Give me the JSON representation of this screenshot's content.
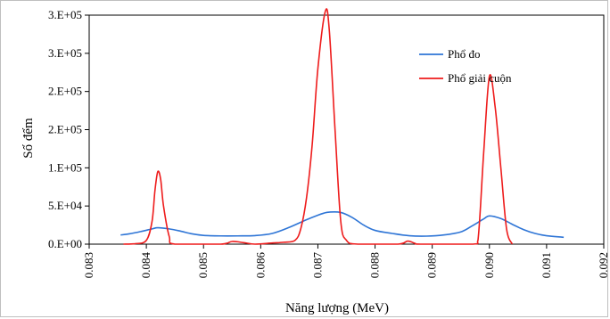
{
  "chart_data": {
    "type": "line",
    "title": "",
    "xlabel": "Năng lượng (MeV)",
    "ylabel": "Số đếm",
    "xlim": [
      0.083,
      0.092
    ],
    "ylim": [
      0,
      300000
    ],
    "x_ticks": [
      "0.083",
      "0.084",
      "0.085",
      "0.086",
      "0.087",
      "0.088",
      "0.089",
      "0.090",
      "0.091",
      "0.092"
    ],
    "y_ticks": [
      "0.E+00",
      "5.E+04",
      "1.E+05",
      "2.E+05",
      "2.E+05",
      "3.E+05",
      "3.E+05"
    ],
    "grid": false,
    "legend_position": "top-right",
    "colors": {
      "measured": "#2e75d6",
      "unfolded": "#ee1c1c"
    },
    "series": [
      {
        "name": "Phổ đo",
        "color": "#2e75d6",
        "points": [
          [
            0.08355,
            12000
          ],
          [
            0.0837,
            13500
          ],
          [
            0.0839,
            16500
          ],
          [
            0.0841,
            20000
          ],
          [
            0.0842,
            21500
          ],
          [
            0.0844,
            20000
          ],
          [
            0.0846,
            17000
          ],
          [
            0.0848,
            13500
          ],
          [
            0.085,
            11500
          ],
          [
            0.0853,
            10800
          ],
          [
            0.0856,
            10800
          ],
          [
            0.0859,
            11200
          ],
          [
            0.0862,
            14000
          ],
          [
            0.0865,
            22000
          ],
          [
            0.0868,
            32000
          ],
          [
            0.087,
            38000
          ],
          [
            0.0871,
            40500
          ],
          [
            0.0872,
            42000
          ],
          [
            0.0874,
            41500
          ],
          [
            0.0876,
            35000
          ],
          [
            0.0878,
            25000
          ],
          [
            0.088,
            18000
          ],
          [
            0.0883,
            14000
          ],
          [
            0.0886,
            11000
          ],
          [
            0.0889,
            10500
          ],
          [
            0.0892,
            12000
          ],
          [
            0.0895,
            16000
          ],
          [
            0.0897,
            24000
          ],
          [
            0.0899,
            33000
          ],
          [
            0.09,
            37000
          ],
          [
            0.0902,
            33500
          ],
          [
            0.0904,
            26000
          ],
          [
            0.0906,
            19000
          ],
          [
            0.0908,
            14000
          ],
          [
            0.091,
            11000
          ],
          [
            0.0913,
            9000
          ]
        ]
      },
      {
        "name": "Phổ giải cuộn",
        "color": "#ee1c1c",
        "points": [
          [
            0.0836,
            0
          ],
          [
            0.0838,
            500
          ],
          [
            0.084,
            5000
          ],
          [
            0.0841,
            30000
          ],
          [
            0.08415,
            70000
          ],
          [
            0.0842,
            95000
          ],
          [
            0.08425,
            85000
          ],
          [
            0.0843,
            50000
          ],
          [
            0.0844,
            10000
          ],
          [
            0.0845,
            0
          ],
          [
            0.0853,
            0
          ],
          [
            0.0855,
            3500
          ],
          [
            0.0857,
            2000
          ],
          [
            0.0859,
            0
          ],
          [
            0.0862,
            1500
          ],
          [
            0.0864,
            2500
          ],
          [
            0.0866,
            5000
          ],
          [
            0.0867,
            20000
          ],
          [
            0.0868,
            60000
          ],
          [
            0.0869,
            130000
          ],
          [
            0.087,
            230000
          ],
          [
            0.08713,
            305000
          ],
          [
            0.0872,
            280000
          ],
          [
            0.0873,
            150000
          ],
          [
            0.0874,
            30000
          ],
          [
            0.0875,
            5000
          ],
          [
            0.0877,
            0
          ],
          [
            0.0884,
            0
          ],
          [
            0.08857,
            4000
          ],
          [
            0.0887,
            1000
          ],
          [
            0.0888,
            0
          ],
          [
            0.0897,
            0
          ],
          [
            0.0898,
            5000
          ],
          [
            0.0899,
            120000
          ],
          [
            0.09,
            220000
          ],
          [
            0.0901,
            180000
          ],
          [
            0.0902,
            100000
          ],
          [
            0.0903,
            20000
          ],
          [
            0.0904,
            0
          ]
        ]
      }
    ]
  }
}
